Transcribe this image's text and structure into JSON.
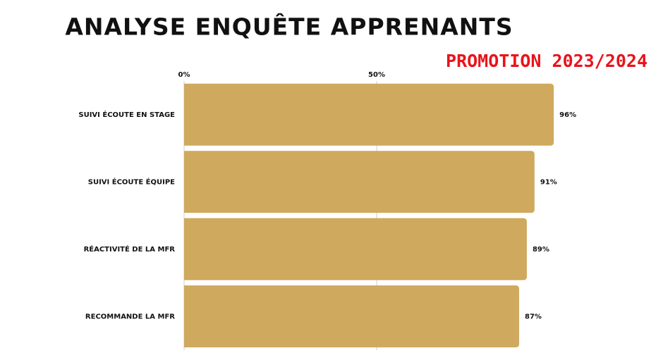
{
  "chart_data": {
    "type": "hbar",
    "title": "ANALYSE ENQUÊTE APPRENANTS",
    "subtitle": "PROMOTION 2023/2024",
    "categories": [
      "SUIVI ÉCOUTE EN STAGE",
      "SUIVI ÉCOUTE ÉQUIPE",
      "RÉACTIVITÉ DE LA MFR",
      "RECOMMANDE LA MFR"
    ],
    "values": [
      96,
      91,
      89,
      87
    ],
    "value_labels": [
      "96%",
      "91%",
      "89%",
      "87%"
    ],
    "color": "#cfa95e",
    "xlim": [
      0,
      100
    ],
    "xticks": [
      {
        "value": 0,
        "label": "0%"
      },
      {
        "value": 50,
        "label": "50%"
      }
    ],
    "grid": true
  }
}
